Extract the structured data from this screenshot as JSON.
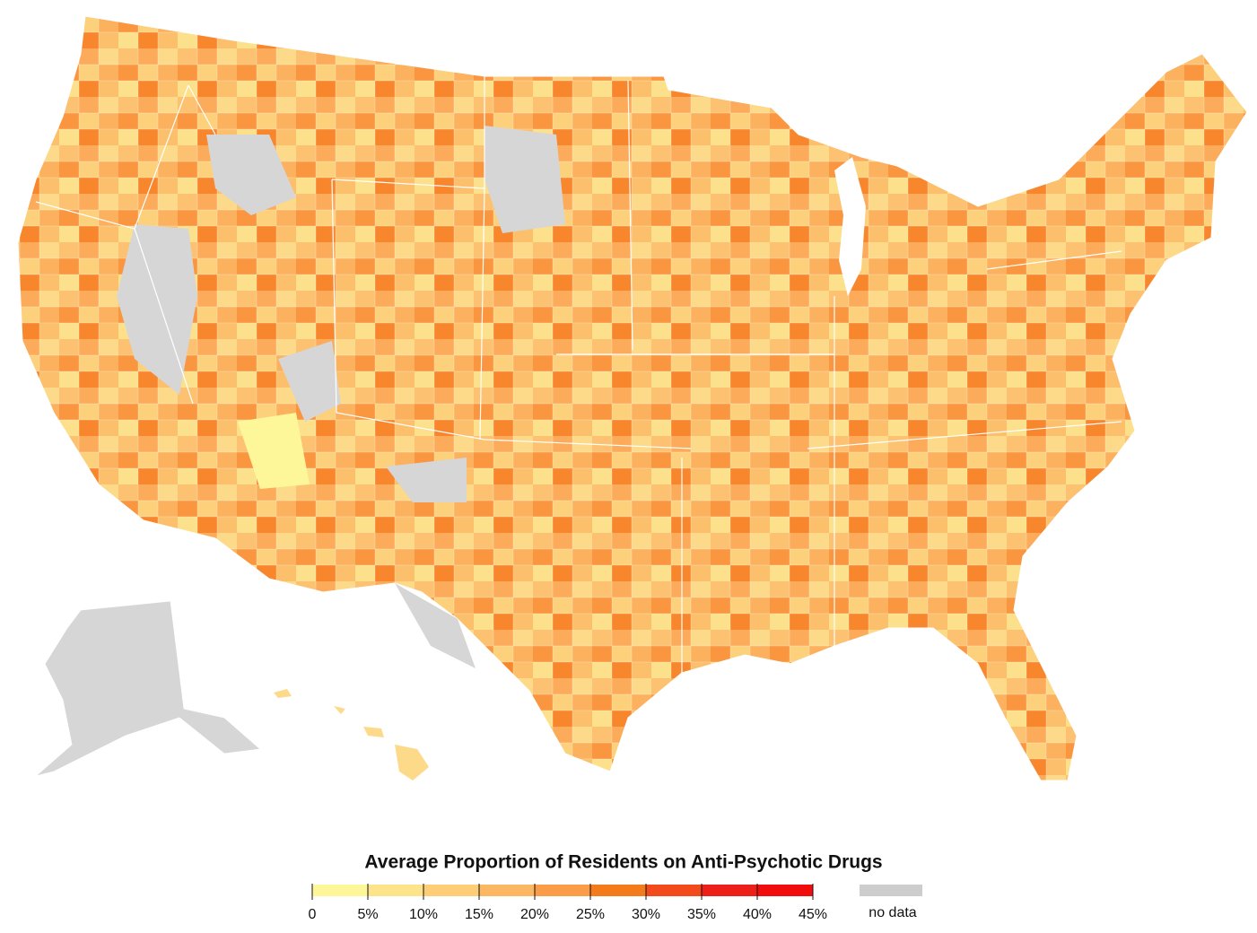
{
  "legend": {
    "title": "Average Proportion of Residents on Anti-Psychotic Drugs",
    "lim": [
      0,
      45
    ],
    "ticks": [
      0,
      {
        "value": 5,
        "label": "5%"
      },
      {
        "value": 10,
        "label": "10%"
      },
      {
        "value": 15,
        "label": "15%"
      },
      {
        "value": 20,
        "label": "20%"
      },
      {
        "value": 25,
        "label": "25%"
      },
      {
        "value": 30,
        "label": "30%"
      },
      {
        "value": 35,
        "label": "35%"
      },
      {
        "value": 40,
        "label": "40%"
      },
      {
        "value": 45,
        "label": "45%"
      }
    ],
    "colors": [
      "#fdf79a",
      "#fde38a",
      "#fdcd78",
      "#fcb763",
      "#fa9c48",
      "#f47b1c",
      "#f24a1a",
      "#ec2018",
      "#f20d0d"
    ],
    "no_data": {
      "label": "no data",
      "color": "#cdcdcd"
    }
  }
}
